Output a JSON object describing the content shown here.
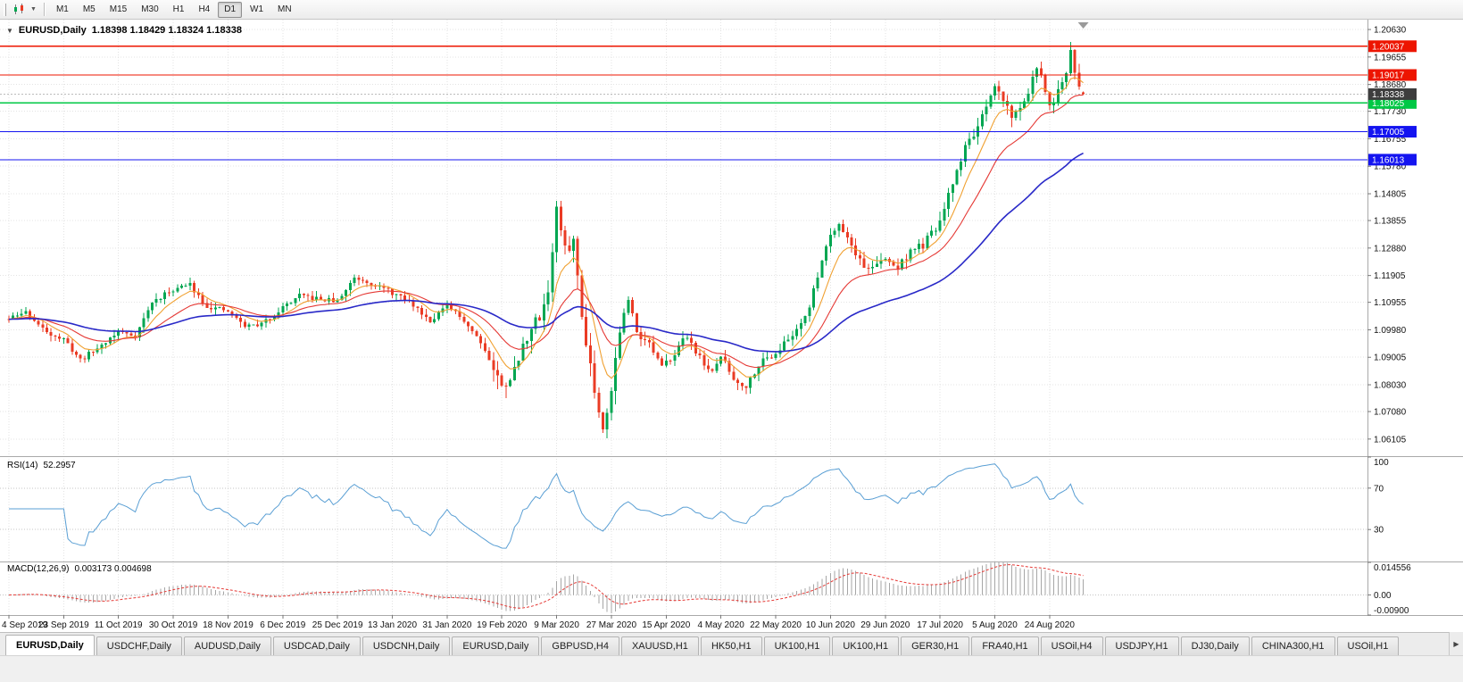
{
  "toolbar": {
    "timeframes": [
      "M1",
      "M5",
      "M15",
      "M30",
      "H1",
      "H4",
      "D1",
      "W1",
      "MN"
    ],
    "active": "D1"
  },
  "chart": {
    "title_symbol": "EURUSD,Daily",
    "ohlc_text": "1.18398 1.18429 1.18324 1.18338"
  },
  "chart_data": {
    "type": "candlestick",
    "symbol": "EURUSD",
    "timeframe": "Daily",
    "ohlc": {
      "open": 1.18398,
      "high": 1.18429,
      "low": 1.18324,
      "close": 1.18338
    },
    "price_axis_ticks": [
      "1.20630",
      "1.19655",
      "1.18680",
      "1.17730",
      "1.16755",
      "1.15780",
      "1.14805",
      "1.13855",
      "1.12880",
      "1.11905",
      "1.10955",
      "1.09980",
      "1.09005",
      "1.08030",
      "1.07080",
      "1.06105"
    ],
    "price_range": {
      "top": 1.2098,
      "bottom": 1.0553
    },
    "x_labels": [
      "4 Sep 2019",
      "23 Sep 2019",
      "11 Oct 2019",
      "30 Oct 2019",
      "18 Nov 2019",
      "6 Dec 2019",
      "25 Dec 2019",
      "13 Jan 2020",
      "31 Jan 2020",
      "19 Feb 2020",
      "9 Mar 2020",
      "27 Mar 2020",
      "15 Apr 2020",
      "4 May 2020",
      "22 May 2020",
      "10 Jun 2020",
      "29 Jun 2020",
      "17 Jul 2020",
      "5 Aug 2020",
      "24 Aug 2020"
    ],
    "candles_per_label": 13,
    "candle_count": 256,
    "horizontal_lines": [
      {
        "price": 1.20037,
        "label": "1.20037",
        "color": "#ed1500",
        "type": "resistance"
      },
      {
        "price": 1.19017,
        "label": "1.19017",
        "color": "#ed1500",
        "type": "resistance"
      },
      {
        "price": 1.18025,
        "label": "1.18025",
        "color": "#00c845",
        "type": "pivot"
      },
      {
        "price": 1.17005,
        "label": "1.17005",
        "color": "#1414f0",
        "type": "support"
      },
      {
        "price": 1.16013,
        "label": "1.16013",
        "color": "#1414f0",
        "type": "support"
      }
    ],
    "current_price": {
      "value": 1.18338,
      "label": "1.18338",
      "badge_color": "#3d3d3d"
    },
    "candle_colors": {
      "up": "#00a651",
      "down": "#ea3b24"
    },
    "moving_averages": [
      {
        "period": 8,
        "color": "#f0a030"
      },
      {
        "period": 20,
        "color": "#e53935"
      },
      {
        "period": 55,
        "color": "#2929c8"
      }
    ],
    "close_keypoints": [
      [
        0,
        1.1035
      ],
      [
        4,
        1.1062
      ],
      [
        8,
        1.1
      ],
      [
        13,
        1.0962
      ],
      [
        17,
        1.0892
      ],
      [
        21,
        1.0932
      ],
      [
        26,
        1.0992
      ],
      [
        30,
        1.0978
      ],
      [
        34,
        1.1095
      ],
      [
        39,
        1.1142
      ],
      [
        43,
        1.1158
      ],
      [
        47,
        1.1082
      ],
      [
        52,
        1.1062
      ],
      [
        56,
        1.1012
      ],
      [
        60,
        1.1018
      ],
      [
        65,
        1.1078
      ],
      [
        69,
        1.1118
      ],
      [
        73,
        1.1108
      ],
      [
        78,
        1.1098
      ],
      [
        82,
        1.1185
      ],
      [
        86,
        1.1165
      ],
      [
        91,
        1.1128
      ],
      [
        95,
        1.1098
      ],
      [
        100,
        1.1032
      ],
      [
        104,
        1.1082
      ],
      [
        108,
        1.1032
      ],
      [
        112,
        1.0958
      ],
      [
        117,
        1.0795
      ],
      [
        120,
        1.0852
      ],
      [
        123,
        1.0978
      ],
      [
        126,
        1.1048
      ],
      [
        128,
        1.1135
      ],
      [
        130,
        1.1428
      ],
      [
        132,
        1.1278
      ],
      [
        134,
        1.1315
      ],
      [
        136,
        1.1048
      ],
      [
        138,
        1.0878
      ],
      [
        140,
        1.0702
      ],
      [
        141,
        1.0662
      ],
      [
        143,
        1.0782
      ],
      [
        145,
        1.1002
      ],
      [
        147,
        1.1098
      ],
      [
        149,
        1.1002
      ],
      [
        152,
        1.0948
      ],
      [
        155,
        1.0862
      ],
      [
        158,
        1.0918
      ],
      [
        161,
        1.0978
      ],
      [
        164,
        1.0898
      ],
      [
        167,
        1.0842
      ],
      [
        169,
        1.0908
      ],
      [
        172,
        1.0822
      ],
      [
        175,
        1.0798
      ],
      [
        178,
        1.0878
      ],
      [
        182,
        1.0918
      ],
      [
        186,
        1.0978
      ],
      [
        190,
        1.1078
      ],
      [
        193,
        1.1248
      ],
      [
        195,
        1.1338
      ],
      [
        197,
        1.1378
      ],
      [
        200,
        1.1298
      ],
      [
        203,
        1.1218
      ],
      [
        206,
        1.1228
      ],
      [
        208,
        1.1248
      ],
      [
        211,
        1.1218
      ],
      [
        214,
        1.1278
      ],
      [
        217,
        1.1298
      ],
      [
        221,
        1.1378
      ],
      [
        224,
        1.1518
      ],
      [
        227,
        1.1648
      ],
      [
        230,
        1.1718
      ],
      [
        232,
        1.1778
      ],
      [
        234,
        1.1858
      ],
      [
        236,
        1.1818
      ],
      [
        238,
        1.1758
      ],
      [
        240,
        1.1778
      ],
      [
        242,
        1.1848
      ],
      [
        244,
        1.1928
      ],
      [
        246,
        1.1848
      ],
      [
        247,
        1.1788
      ],
      [
        249,
        1.1838
      ],
      [
        251,
        1.1898
      ],
      [
        252,
        1.1988
      ],
      [
        253,
        1.1918
      ],
      [
        254,
        1.1858
      ],
      [
        255,
        1.18338
      ]
    ],
    "volatility_zones": [
      [
        0,
        114,
        0.0035
      ],
      [
        115,
        150,
        0.0085
      ],
      [
        151,
        200,
        0.0045
      ],
      [
        201,
        255,
        0.0055
      ]
    ],
    "grid_color": "#e3e3e3",
    "indicators": {
      "rsi": {
        "name": "RSI(14)",
        "value": "52.2957",
        "period": 14,
        "levels": [
          100,
          70,
          30
        ],
        "axis_labels": [
          "100",
          "70",
          "30"
        ],
        "line_color": "#5a9fd4"
      },
      "macd": {
        "name": "MACD(12,26,9)",
        "values_text": "0.003173 0.004698",
        "fast": 12,
        "slow": 26,
        "signal": 9,
        "axis_labels": [
          "0.014556",
          "0.00",
          "-0.00900"
        ],
        "scale": {
          "top": 0.014556,
          "bottom": -0.009
        },
        "histogram_color": "#a6a6a6",
        "signal_color": "#e53935"
      }
    }
  },
  "tabs": {
    "items": [
      "EURUSD,Daily",
      "USDCHF,Daily",
      "AUDUSD,Daily",
      "USDCAD,Daily",
      "USDCNH,Daily",
      "EURUSD,Daily",
      "GBPUSD,H4",
      "XAUUSD,H1",
      "HK50,H1",
      "UK100,H1",
      "UK100,H1",
      "GER30,H1",
      "FRA40,H1",
      "USOil,H4",
      "USDJPY,H1",
      "DJ30,Daily",
      "CHINA300,H1",
      "USOil,H1"
    ],
    "active_index": 0
  }
}
